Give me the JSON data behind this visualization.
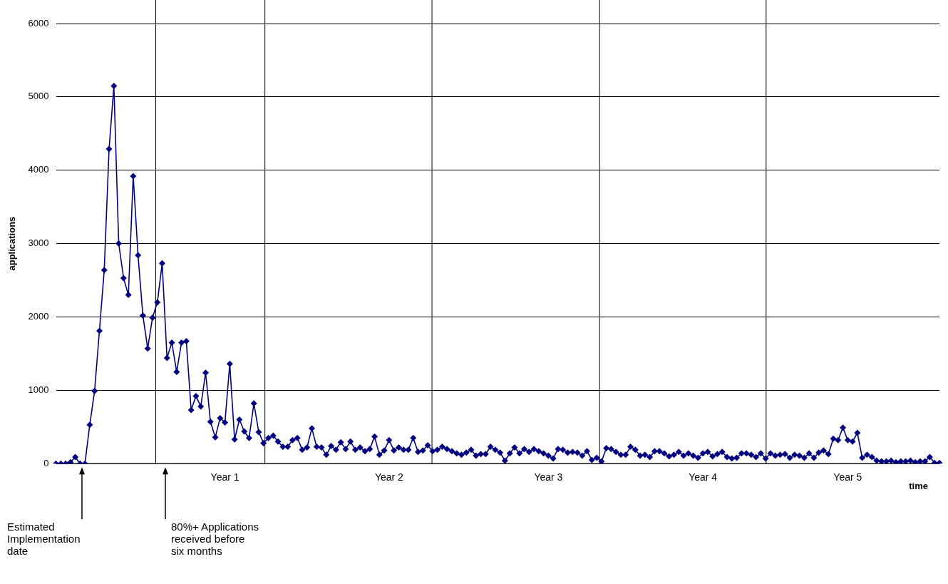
{
  "chart_data": {
    "type": "line",
    "xlabel": "time",
    "ylabel": "applications",
    "categories": [
      null,
      null,
      null,
      null,
      null,
      null,
      null,
      null,
      null,
      null,
      null,
      null,
      null,
      null,
      null,
      null,
      null,
      null,
      null,
      null,
      null,
      null,
      null,
      null,
      null,
      null,
      null,
      null,
      null,
      null,
      null,
      null,
      null,
      null,
      null,
      "Year 1",
      null,
      null,
      null,
      null,
      null,
      null,
      null,
      null,
      null,
      null,
      null,
      null,
      null,
      null,
      null,
      null,
      null,
      null,
      null,
      null,
      null,
      null,
      null,
      null,
      null,
      null,
      null,
      null,
      null,
      null,
      null,
      null,
      null,
      "Year 2",
      null,
      null,
      null,
      null,
      null,
      null,
      null,
      null,
      null,
      null,
      null,
      null,
      null,
      null,
      null,
      null,
      null,
      null,
      null,
      null,
      null,
      null,
      null,
      null,
      null,
      null,
      null,
      null,
      null,
      null,
      null,
      null,
      "Year 3",
      null,
      null,
      null,
      null,
      null,
      null,
      null,
      null,
      null,
      null,
      null,
      null,
      null,
      null,
      null,
      null,
      null,
      null,
      null,
      null,
      null,
      null,
      null,
      null,
      null,
      null,
      null,
      null,
      null,
      null,
      null,
      "Year 4",
      null,
      null,
      null,
      null,
      null,
      null,
      null,
      null,
      null,
      null,
      null,
      null,
      null,
      null,
      null,
      null,
      null,
      null,
      null,
      null,
      null,
      null,
      null,
      null,
      null,
      null,
      null,
      null,
      null,
      "Year 5",
      null,
      null,
      null,
      null,
      null,
      null,
      null,
      null,
      null,
      null,
      null,
      null,
      null,
      null,
      null,
      null,
      null,
      null,
      null
    ],
    "series": [
      {
        "color": "#000080",
        "values": [
          0,
          0,
          0,
          20,
          90,
          0,
          0,
          530,
          990,
          1810,
          2640,
          4290,
          5150,
          3000,
          2530,
          2300,
          3920,
          2840,
          2020,
          1570,
          1990,
          2200,
          2730,
          1440,
          1650,
          1250,
          1650,
          1670,
          730,
          920,
          780,
          1240,
          570,
          360,
          620,
          560,
          1360,
          330,
          600,
          440,
          350,
          820,
          430,
          280,
          350,
          380,
          300,
          230,
          230,
          320,
          350,
          190,
          220,
          480,
          230,
          220,
          120,
          240,
          190,
          290,
          200,
          300,
          190,
          220,
          170,
          200,
          370,
          120,
          180,
          320,
          180,
          220,
          190,
          190,
          350,
          160,
          180,
          250,
          170,
          190,
          230,
          200,
          170,
          140,
          120,
          150,
          190,
          110,
          130,
          130,
          230,
          190,
          150,
          40,
          140,
          220,
          140,
          200,
          160,
          200,
          170,
          140,
          110,
          70,
          200,
          190,
          150,
          160,
          150,
          110,
          170,
          50,
          80,
          30,
          210,
          200,
          160,
          120,
          120,
          230,
          190,
          110,
          120,
          90,
          170,
          170,
          140,
          100,
          120,
          160,
          110,
          140,
          110,
          80,
          140,
          160,
          100,
          130,
          160,
          90,
          70,
          80,
          140,
          140,
          120,
          90,
          140,
          70,
          140,
          110,
          120,
          130,
          80,
          120,
          110,
          80,
          140,
          80,
          150,
          180,
          130,
          340,
          320,
          490,
          320,
          300,
          420,
          80,
          120,
          90,
          40,
          30,
          30,
          40,
          20,
          30,
          30,
          40,
          20,
          30,
          30,
          90,
          10,
          10
        ]
      }
    ],
    "ylim": [
      0,
      6000
    ],
    "yticks": [
      0,
      1000,
      2000,
      3000,
      4000,
      5000,
      6000
    ],
    "grid": "y",
    "marker": "diamond",
    "line_style": "solid",
    "legend": false,
    "annotations": [
      "Estimated Implementation date",
      "80%+ Applications received before six months"
    ]
  }
}
